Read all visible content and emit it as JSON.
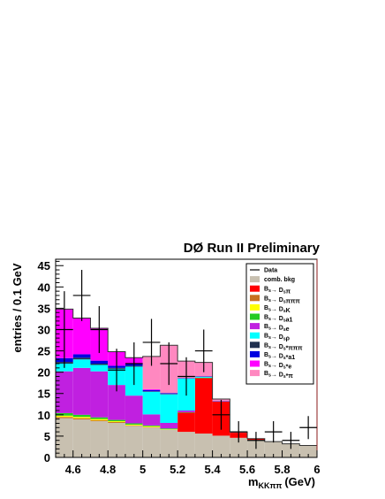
{
  "chart_data": {
    "type": "bar",
    "stacked": true,
    "title": "DØ Run II Preliminary",
    "ylabel": "entries / 0.1 GeV",
    "xlabel_main": "m",
    "xlabel_sub": "KKππ",
    "xlabel_unit": "(GeV)",
    "xlim": [
      4.5,
      6.0
    ],
    "ylim": [
      0,
      46.5
    ],
    "bin_width": 0.1,
    "x_ticks": [
      {
        "v": 4.6,
        "label": "4.6"
      },
      {
        "v": 4.8,
        "label": "4.8"
      },
      {
        "v": 5.0,
        "label": "5"
      },
      {
        "v": 5.2,
        "label": "5.2"
      },
      {
        "v": 5.4,
        "label": "5.4"
      },
      {
        "v": 5.6,
        "label": "5.6"
      },
      {
        "v": 5.8,
        "label": "5.8"
      },
      {
        "v": 6.0,
        "label": "6"
      }
    ],
    "y_ticks": [
      {
        "v": 0,
        "label": "0"
      },
      {
        "v": 5,
        "label": "5"
      },
      {
        "v": 10,
        "label": "10"
      },
      {
        "v": 15,
        "label": "15"
      },
      {
        "v": 20,
        "label": "20"
      },
      {
        "v": 25,
        "label": "25"
      },
      {
        "v": 30,
        "label": "30"
      },
      {
        "v": 35,
        "label": "35"
      },
      {
        "v": 40,
        "label": "40"
      },
      {
        "v": 45,
        "label": "45"
      }
    ],
    "bin_low_edges": [
      4.5,
      4.6,
      4.7,
      4.8,
      4.9,
      5.0,
      5.1,
      5.2,
      5.3,
      5.4,
      5.5,
      5.6,
      5.7,
      5.8,
      5.9
    ],
    "legend_position": "top-right",
    "legend_data_label": "Data",
    "series": [
      {
        "name": "comb. bkg",
        "legend": [
          {
            "t": "comb. bkg"
          }
        ],
        "color": "#c8c0b0",
        "values": [
          9.2,
          8.9,
          8.5,
          8.1,
          7.4,
          7.0,
          6.5,
          6.0,
          5.6,
          5.1,
          4.6,
          4.1,
          3.7,
          3.2,
          2.8
        ]
      },
      {
        "name": "Bs→Dsπ",
        "legend": [
          {
            "t": "B"
          },
          {
            "t": "s",
            "sub": true
          },
          {
            "t": "→ D"
          },
          {
            "t": "s",
            "sub": true
          },
          {
            "t": "π"
          }
        ],
        "color": "#ff0000",
        "values": [
          0,
          0,
          0,
          0,
          0,
          0,
          0,
          4.5,
          13.0,
          8.0,
          1.2,
          0.3,
          0,
          0,
          0
        ]
      },
      {
        "name": "Bs→Dsπππ",
        "legend": [
          {
            "t": "B"
          },
          {
            "t": "s",
            "sub": true
          },
          {
            "t": "→ D"
          },
          {
            "t": "s",
            "sub": true
          },
          {
            "t": "πππ"
          }
        ],
        "color": "#c87020",
        "values": [
          0.3,
          0.3,
          0.2,
          0.2,
          0.1,
          0.1,
          0,
          0,
          0,
          0,
          0,
          0,
          0,
          0,
          0
        ]
      },
      {
        "name": "Bs→DsK",
        "legend": [
          {
            "t": "B"
          },
          {
            "t": "s",
            "sub": true
          },
          {
            "t": "→ D"
          },
          {
            "t": "s",
            "sub": true
          },
          {
            "t": "K"
          }
        ],
        "color": "#ffff00",
        "values": [
          0.3,
          0.3,
          0.3,
          0.2,
          0.2,
          0.2,
          0.1,
          0,
          0,
          0,
          0,
          0,
          0,
          0,
          0
        ]
      },
      {
        "name": "Bs→Dsa1",
        "legend": [
          {
            "t": "B"
          },
          {
            "t": "s",
            "sub": true
          },
          {
            "t": "→ D"
          },
          {
            "t": "s",
            "sub": true
          },
          {
            "t": "a1"
          }
        ],
        "color": "#22cc22",
        "values": [
          0.6,
          0.5,
          0.4,
          0.3,
          0.3,
          0.2,
          0.2,
          0.1,
          0.1,
          0,
          0,
          0,
          0,
          0,
          0
        ]
      },
      {
        "name": "Bs→Dse",
        "legend": [
          {
            "t": "B"
          },
          {
            "t": "s",
            "sub": true
          },
          {
            "t": "→ D"
          },
          {
            "t": "s",
            "sub": true
          },
          {
            "t": "e"
          }
        ],
        "color": "#c020e0",
        "values": [
          9.8,
          11.0,
          10.8,
          8.2,
          6.5,
          2.6,
          1.3,
          0.4,
          0,
          0,
          0,
          0,
          0,
          0,
          0
        ]
      },
      {
        "name": "Bs→Dsρ",
        "legend": [
          {
            "t": "B"
          },
          {
            "t": "s",
            "sub": true
          },
          {
            "t": "→ D"
          },
          {
            "t": "s",
            "sub": true
          },
          {
            "t": "ρ"
          }
        ],
        "color": "#00ffff",
        "values": [
          1.8,
          2.0,
          1.5,
          3.8,
          6.8,
          5.3,
          6.7,
          7.5,
          0.2,
          0,
          0,
          0,
          0,
          0,
          0
        ]
      },
      {
        "name": "Bs→Ds*πππ",
        "legend": [
          {
            "t": "B"
          },
          {
            "t": "s",
            "sub": true
          },
          {
            "t": "→ D"
          },
          {
            "t": "s",
            "sub": true
          },
          {
            "t": "*πππ"
          }
        ],
        "color": "#203050",
        "values": [
          0.4,
          0.4,
          0.3,
          0.2,
          0.2,
          0.1,
          0.1,
          0,
          0,
          0,
          0,
          0,
          0,
          0,
          0
        ]
      },
      {
        "name": "Bs→Ds*a1",
        "legend": [
          {
            "t": "B"
          },
          {
            "t": "s",
            "sub": true
          },
          {
            "t": "→ D"
          },
          {
            "t": "s",
            "sub": true
          },
          {
            "t": "*a1"
          }
        ],
        "color": "#0000e0",
        "values": [
          0.9,
          0.8,
          0.7,
          0.5,
          0.4,
          0.3,
          0.2,
          0.1,
          0.1,
          0.1,
          0,
          0,
          0,
          0,
          0
        ]
      },
      {
        "name": "Bs→Ds*e",
        "legend": [
          {
            "t": "B"
          },
          {
            "t": "s",
            "sub": true
          },
          {
            "t": "→ D"
          },
          {
            "t": "s",
            "sub": true
          },
          {
            "t": "*e"
          }
        ],
        "color": "#ff00ff",
        "values": [
          11.5,
          8.5,
          7.6,
          3.3,
          1.5,
          0.2,
          0,
          0,
          0,
          0,
          0,
          0,
          0,
          0,
          0
        ]
      },
      {
        "name": "Bs→Ds*π",
        "legend": [
          {
            "t": "B"
          },
          {
            "t": "s",
            "sub": true
          },
          {
            "t": "→ D"
          },
          {
            "t": "s",
            "sub": true
          },
          {
            "t": "*π"
          }
        ],
        "color": "#ff88c0",
        "values": [
          0,
          0,
          0,
          0,
          0,
          7.7,
          11.2,
          4.0,
          3.3,
          0.5,
          0.2,
          0,
          0,
          0,
          0
        ]
      }
    ],
    "data_points": [
      {
        "x": 4.55,
        "y": 30.0,
        "err": 9.0
      },
      {
        "x": 4.65,
        "y": 38.0,
        "err": 6.0
      },
      {
        "x": 4.75,
        "y": 30.0,
        "err": 5.5
      },
      {
        "x": 4.85,
        "y": 20.5,
        "err": 5.0
      },
      {
        "x": 4.95,
        "y": 22.0,
        "err": 5.0
      },
      {
        "x": 5.05,
        "y": 27.0,
        "err": 5.5
      },
      {
        "x": 5.15,
        "y": 22.0,
        "err": 5.0
      },
      {
        "x": 5.25,
        "y": 19.0,
        "err": 4.5
      },
      {
        "x": 5.35,
        "y": 25.0,
        "err": 5.0
      },
      {
        "x": 5.45,
        "y": 10.0,
        "err": 3.5
      },
      {
        "x": 5.55,
        "y": 6.0,
        "err": 2.5
      },
      {
        "x": 5.65,
        "y": 4.0,
        "err": 2.0
      },
      {
        "x": 5.75,
        "y": 6.0,
        "err": 2.5
      },
      {
        "x": 5.85,
        "y": 4.0,
        "err": 2.0
      },
      {
        "x": 5.95,
        "y": 7.0,
        "err": 2.7
      }
    ]
  }
}
